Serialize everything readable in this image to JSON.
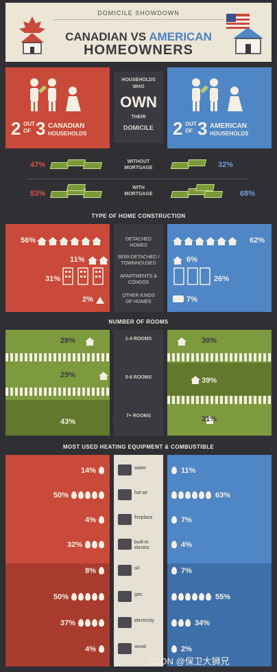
{
  "header": {
    "kicker": "DOMICILE SHOWDOWN",
    "title_part1": "CANADIAN VS",
    "title_part2": "AMERICAN",
    "title_line2": "HOMEOWNERS"
  },
  "ownership": {
    "center": [
      "HOUSEHOLDS",
      "WHO",
      "OWN",
      "THEIR",
      "DOMICILE"
    ],
    "canada": {
      "num": "2",
      "out": "OUT",
      "of": "OF",
      "den": "3",
      "label1": "CANADIAN",
      "label2": "HOUSEHOLDS"
    },
    "usa": {
      "num": "2",
      "out": "OUT",
      "of": "OF",
      "den": "3",
      "label1": "AMERICAN",
      "label2": "HOUSEHOLDS"
    }
  },
  "mortgage": {
    "rows": [
      {
        "label1": "WITHOUT",
        "label2": "MORTGAGE",
        "canada": "47%",
        "usa": "32%"
      },
      {
        "label1": "WITH",
        "label2": "MORTGAGE",
        "canada": "53%",
        "usa": "68%"
      }
    ]
  },
  "construction": {
    "title": "TYPE OF HOME CONSTRUCTION",
    "rows": [
      {
        "label": "DETACHED HOMES",
        "canada": "56%",
        "usa": "62%"
      },
      {
        "label": "SEMI-DETACHED / TOWNHOUSES",
        "canada": "11%",
        "usa": "6%"
      },
      {
        "label": "APARTMENTS & CONDOS",
        "canada": "31%",
        "usa": "26%"
      },
      {
        "label": "OTHER KINDS OF HOMES",
        "canada": "2%",
        "usa": "7%"
      }
    ]
  },
  "rooms": {
    "title": "NUMBER OF ROOMS",
    "rows": [
      {
        "label": "1-4 ROOMS",
        "canada": "28%",
        "usa": "30%"
      },
      {
        "label": "5-6 ROOMS",
        "canada": "29%",
        "usa": "39%"
      },
      {
        "label": "7+ ROOMS",
        "canada": "43%",
        "usa": "31%"
      }
    ]
  },
  "heating": {
    "title": "MOST USED HEATING EQUIPMENT & COMBUSTIBLE",
    "equipment": [
      {
        "label": "water",
        "canada": "14%",
        "usa": "11%"
      },
      {
        "label": "hot air",
        "canada": "50%",
        "usa": "63%"
      },
      {
        "label": "fireplace",
        "canada": "4%",
        "usa": "7%"
      },
      {
        "label": "built-in electric",
        "canada": "32%",
        "usa": "4%"
      }
    ],
    "fuel": [
      {
        "label": "oil",
        "canada": "8%",
        "usa": "7%"
      },
      {
        "label": "gas",
        "canada": "50%",
        "usa": "55%"
      },
      {
        "label": "electricity",
        "canada": "37%",
        "usa": "34%"
      },
      {
        "label": "wood",
        "canada": "4%",
        "usa": "2%"
      }
    ]
  },
  "watermark": "CSDN @保卫大狮兄",
  "colors": {
    "canada": "#c9493a",
    "usa": "#4f86c6",
    "green": "#7e9a3f",
    "dark": "#2f2f34"
  }
}
